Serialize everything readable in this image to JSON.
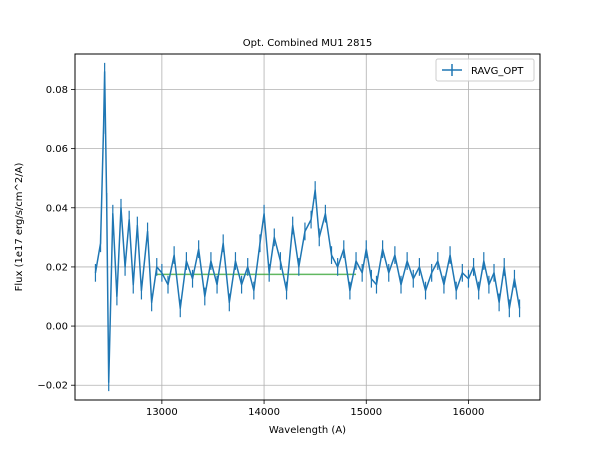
{
  "chart_data": {
    "type": "line",
    "title": "Opt. Combined MU1 2815",
    "xlabel": "Wavelength (A)",
    "ylabel": "Flux (1e17 erg/s/cm^2/A)",
    "xlim": [
      12150,
      16700
    ],
    "ylim": [
      -0.025,
      0.092
    ],
    "xticks": [
      13000,
      14000,
      15000,
      16000
    ],
    "yticks": [
      -0.02,
      0.0,
      0.02,
      0.04,
      0.06,
      0.08
    ],
    "xtick_labels": [
      "13000",
      "14000",
      "15000",
      "16000"
    ],
    "ytick_labels": [
      "−0.02",
      "0.00",
      "0.02",
      "0.04",
      "0.06",
      "0.08"
    ],
    "grid": true,
    "legend_placement": "top-right",
    "series": [
      {
        "name": "RAVG_OPT",
        "color": "#1f77b4",
        "errorbar": true,
        "x": [
          12350,
          12400,
          12430,
          12440,
          12460,
          12480,
          12520,
          12560,
          12600,
          12640,
          12680,
          12720,
          12760,
          12800,
          12860,
          12900,
          12950,
          13000,
          13060,
          13120,
          13180,
          13240,
          13300,
          13360,
          13420,
          13480,
          13540,
          13600,
          13660,
          13720,
          13780,
          13840,
          13900,
          13960,
          14000,
          14050,
          14100,
          14160,
          14220,
          14280,
          14340,
          14400,
          14460,
          14500,
          14540,
          14600,
          14660,
          14720,
          14780,
          14840,
          14900,
          14960,
          15000,
          15050,
          15100,
          15160,
          15220,
          15280,
          15340,
          15400,
          15460,
          15520,
          15580,
          15640,
          15700,
          15760,
          15820,
          15880,
          15940,
          16000,
          16050,
          16100,
          16150,
          16200,
          16250,
          16300,
          16350,
          16400,
          16450,
          16500
        ],
        "y": [
          0.018,
          0.028,
          0.068,
          0.086,
          0.042,
          -0.019,
          0.038,
          0.01,
          0.04,
          0.02,
          0.036,
          0.014,
          0.034,
          0.012,
          0.032,
          0.008,
          0.02,
          0.018,
          0.014,
          0.024,
          0.006,
          0.022,
          0.016,
          0.026,
          0.01,
          0.022,
          0.014,
          0.028,
          0.008,
          0.022,
          0.014,
          0.02,
          0.012,
          0.028,
          0.038,
          0.018,
          0.03,
          0.022,
          0.012,
          0.034,
          0.02,
          0.032,
          0.036,
          0.046,
          0.03,
          0.038,
          0.024,
          0.02,
          0.026,
          0.012,
          0.022,
          0.018,
          0.026,
          0.016,
          0.014,
          0.026,
          0.018,
          0.024,
          0.014,
          0.022,
          0.016,
          0.02,
          0.012,
          0.018,
          0.022,
          0.014,
          0.024,
          0.012,
          0.018,
          0.016,
          0.02,
          0.012,
          0.022,
          0.014,
          0.018,
          0.008,
          0.02,
          0.006,
          0.016,
          0.006
        ],
        "yerr": 0.003
      },
      {
        "name": "",
        "color": "#2ca02c",
        "x": [
          12950,
          14900
        ],
        "y": [
          0.0175,
          0.0175
        ]
      }
    ]
  }
}
